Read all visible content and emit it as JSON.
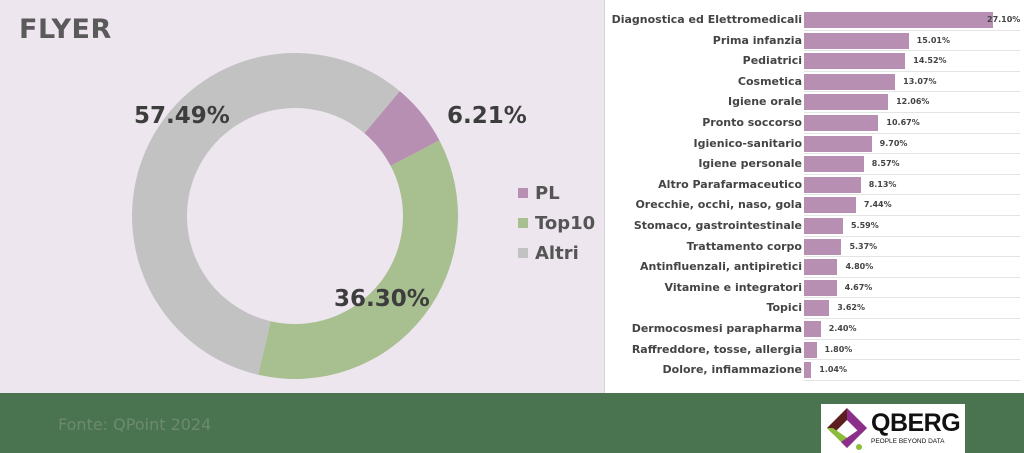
{
  "left": {
    "title": "FLYER",
    "donut_labels": {
      "pl": "6.21%",
      "top10": "36.30%",
      "altri": "57.49%"
    },
    "legend": [
      {
        "label": "PL",
        "color": "#b68fb2"
      },
      {
        "label": "Top10",
        "color": "#a8bf8f"
      },
      {
        "label": "Altri",
        "color": "#c2c2c2"
      }
    ]
  },
  "footer": {
    "source": "Fonte: QPoint 2024",
    "logo_name": "QBERG",
    "logo_tagline": "PEOPLE BEYOND DATA"
  },
  "colors": {
    "pl": "#b68fb2",
    "top10": "#a8bf8f",
    "altri": "#c2c2c2",
    "bar": "#b68fb2",
    "footer": "#4a7350",
    "panel": "#ede6ee"
  },
  "chart_data": [
    {
      "type": "pie",
      "title": "FLYER",
      "donut": true,
      "categories": [
        "PL",
        "Top10",
        "Altri"
      ],
      "values": [
        6.21,
        36.3,
        57.49
      ],
      "value_labels": [
        "6.21%",
        "36.30%",
        "57.49%"
      ],
      "legend_position": "right"
    },
    {
      "type": "bar",
      "orientation": "horizontal",
      "categories": [
        "Diagnostica ed Elettromedicali",
        "Prima infanzia",
        "Pediatrici",
        "Cosmetica",
        "Igiene orale",
        "Pronto soccorso",
        "Igienico-sanitario",
        "Igiene personale",
        "Altro Parafarmaceutico",
        "Orecchie, occhi, naso, gola",
        "Stomaco, gastrointestinale",
        "Trattamento corpo",
        "Antinfluenzali, antipiretici",
        "Vitamine e integratori",
        "Topici",
        "Dermocosmesi parapharma",
        "Raffreddore, tosse, allergia",
        "Dolore, infiammazione"
      ],
      "values": [
        27.1,
        15.01,
        14.52,
        13.07,
        12.06,
        10.67,
        9.7,
        8.57,
        8.13,
        7.44,
        5.59,
        5.37,
        4.8,
        4.67,
        3.62,
        2.4,
        1.8,
        1.04
      ],
      "value_labels": [
        "27.10%",
        "15.01%",
        "14.52%",
        "13.07%",
        "12.06%",
        "10.67%",
        "9.70%",
        "8.57%",
        "8.13%",
        "7.44%",
        "5.59%",
        "5.37%",
        "4.80%",
        "4.67%",
        "3.62%",
        "2.40%",
        "1.80%",
        "1.04%"
      ],
      "xlabel": "",
      "ylabel": "",
      "grid": true
    }
  ]
}
